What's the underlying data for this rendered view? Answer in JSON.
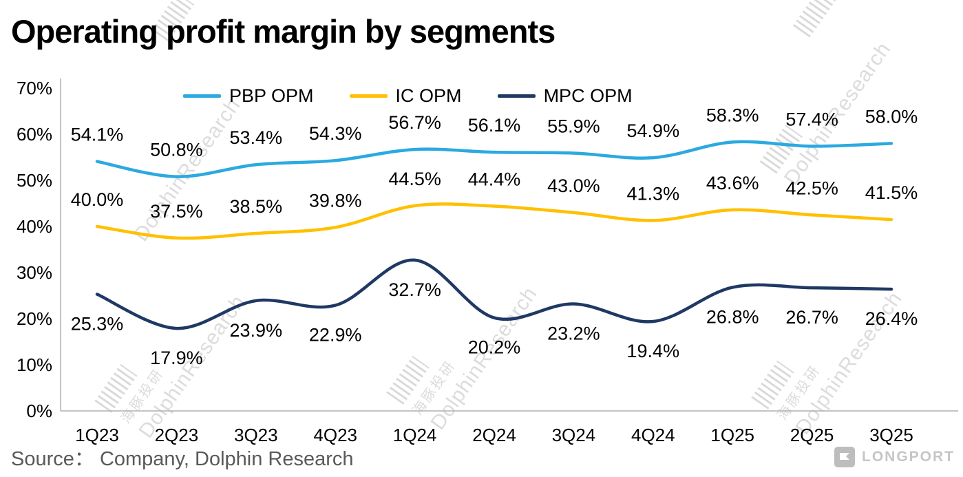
{
  "title": "Operating profit margin by segments",
  "source": "Source：  Company, Dolphin Research",
  "watermark": {
    "cn": "海豚投研",
    "en": "DolphinResearch"
  },
  "logo": {
    "text": "LONGPORT"
  },
  "chart_data": {
    "type": "line",
    "title": "Operating profit margin by segments",
    "categories": [
      "1Q23",
      "2Q23",
      "3Q23",
      "4Q23",
      "1Q24",
      "2Q24",
      "3Q24",
      "4Q24",
      "1Q25",
      "2Q25",
      "3Q25"
    ],
    "series": [
      {
        "name": "PBP OPM",
        "color": "#2BA9E0",
        "values": [
          54.1,
          50.8,
          53.4,
          54.3,
          56.7,
          56.1,
          55.9,
          54.9,
          58.3,
          57.4,
          58.0
        ],
        "labels": [
          "54.1%",
          "50.8%",
          "53.4%",
          "54.3%",
          "56.7%",
          "56.1%",
          "55.9%",
          "54.9%",
          "58.3%",
          "57.4%",
          "58.0%"
        ],
        "label_side": "above"
      },
      {
        "name": "IC OPM",
        "color": "#FFC000",
        "values": [
          40.0,
          37.5,
          38.5,
          39.8,
          44.5,
          44.4,
          43.0,
          41.3,
          43.6,
          42.5,
          41.5
        ],
        "labels": [
          "40.0%",
          "37.5%",
          "38.5%",
          "39.8%",
          "44.5%",
          "44.4%",
          "43.0%",
          "41.3%",
          "43.6%",
          "42.5%",
          "41.5%"
        ],
        "label_side": "above"
      },
      {
        "name": "MPC OPM",
        "color": "#1F3864",
        "values": [
          25.3,
          17.9,
          23.9,
          22.9,
          32.7,
          20.2,
          23.2,
          19.4,
          26.8,
          26.7,
          26.4
        ],
        "labels": [
          "25.3%",
          "17.9%",
          "23.9%",
          "22.9%",
          "32.7%",
          "20.2%",
          "23.2%",
          "19.4%",
          "26.8%",
          "26.7%",
          "26.4%"
        ],
        "label_side": "below"
      }
    ],
    "xlabel": "",
    "ylabel": "",
    "ylim": [
      0,
      70
    ],
    "ytick_step": 10,
    "ytick_labels": [
      "0%",
      "10%",
      "20%",
      "30%",
      "40%",
      "50%",
      "60%",
      "70%"
    ],
    "grid": false,
    "legend_position": "top"
  }
}
